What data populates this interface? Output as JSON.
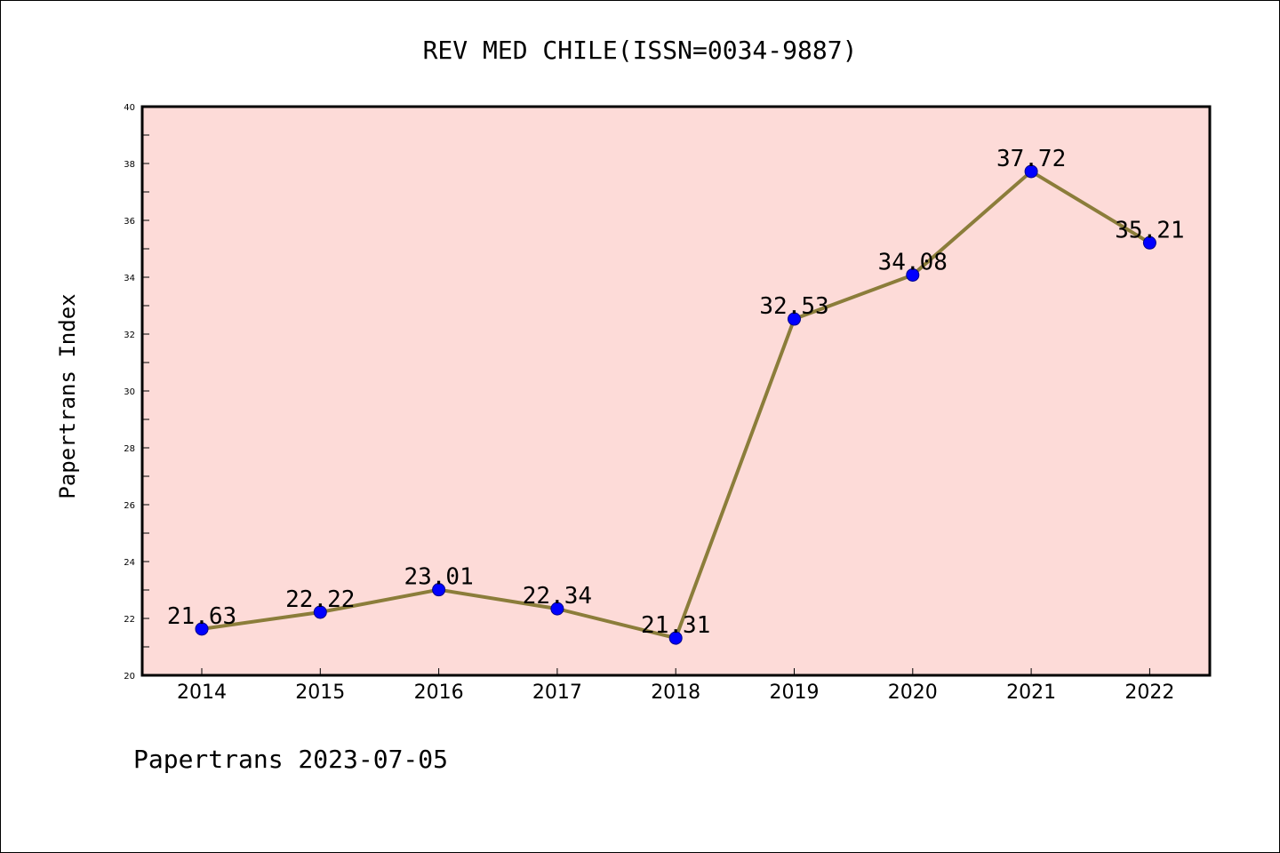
{
  "chart_data": {
    "type": "line",
    "title": "REV MED CHILE(ISSN=0034-9887)",
    "ylabel": "Papertrans Index",
    "xlabel": "",
    "footer": "Papertrans 2023-07-05",
    "categories": [
      "2014",
      "2015",
      "2016",
      "2017",
      "2018",
      "2019",
      "2020",
      "2021",
      "2022"
    ],
    "values": [
      21.63,
      22.22,
      23.01,
      22.34,
      21.31,
      32.53,
      34.08,
      37.72,
      35.21
    ],
    "data_labels": [
      "21.63",
      "22.22",
      "23.01",
      "22.34",
      "21.31",
      "32.53",
      "34.08",
      "37.72",
      "35.21"
    ],
    "ylim": [
      20,
      40
    ],
    "yticks": [
      "20",
      "22",
      "24",
      "26",
      "28",
      "30",
      "32",
      "34",
      "36",
      "38",
      "40"
    ],
    "grid": false,
    "colors": {
      "plot_background": "#fddbd8",
      "line": "#8b7d3a",
      "marker": "#0000ff"
    }
  }
}
